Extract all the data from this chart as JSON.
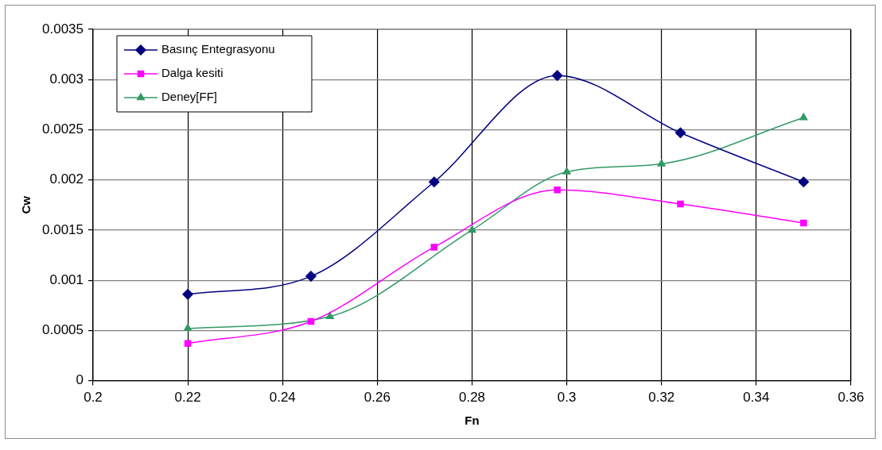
{
  "chart_data": {
    "type": "line",
    "xlabel": "Fn",
    "ylabel": "Cw",
    "xlim": [
      0.2,
      0.36
    ],
    "xticks": [
      0.2,
      0.22,
      0.24,
      0.26,
      0.28,
      0.3,
      0.32,
      0.34,
      0.36
    ],
    "ylim": [
      0,
      0.0035
    ],
    "yticks": [
      0,
      0.0005,
      0.001,
      0.0015,
      0.002,
      0.0025,
      0.003,
      0.0035
    ],
    "grid": true,
    "legend": "top left",
    "series": [
      {
        "name": "Basınç Entegrasyonu",
        "color": "#000080",
        "marker": "diamond",
        "x": [
          0.22,
          0.246,
          0.272,
          0.298,
          0.324,
          0.35
        ],
        "values": [
          0.00086,
          0.00104,
          0.00198,
          0.00304,
          0.00247,
          0.00198
        ]
      },
      {
        "name": "Dalga kesiti",
        "color": "#ff00ff",
        "marker": "square",
        "x": [
          0.22,
          0.246,
          0.272,
          0.298,
          0.324,
          0.35
        ],
        "values": [
          0.00037,
          0.00059,
          0.00133,
          0.0019,
          0.00176,
          0.00157
        ]
      },
      {
        "name": "Deney[FF]",
        "color": "#339966",
        "marker": "triangle",
        "x": [
          0.22,
          0.25,
          0.28,
          0.3,
          0.32,
          0.35
        ],
        "values": [
          0.00052,
          0.00064,
          0.0015,
          0.00208,
          0.00216,
          0.00262
        ]
      }
    ]
  }
}
